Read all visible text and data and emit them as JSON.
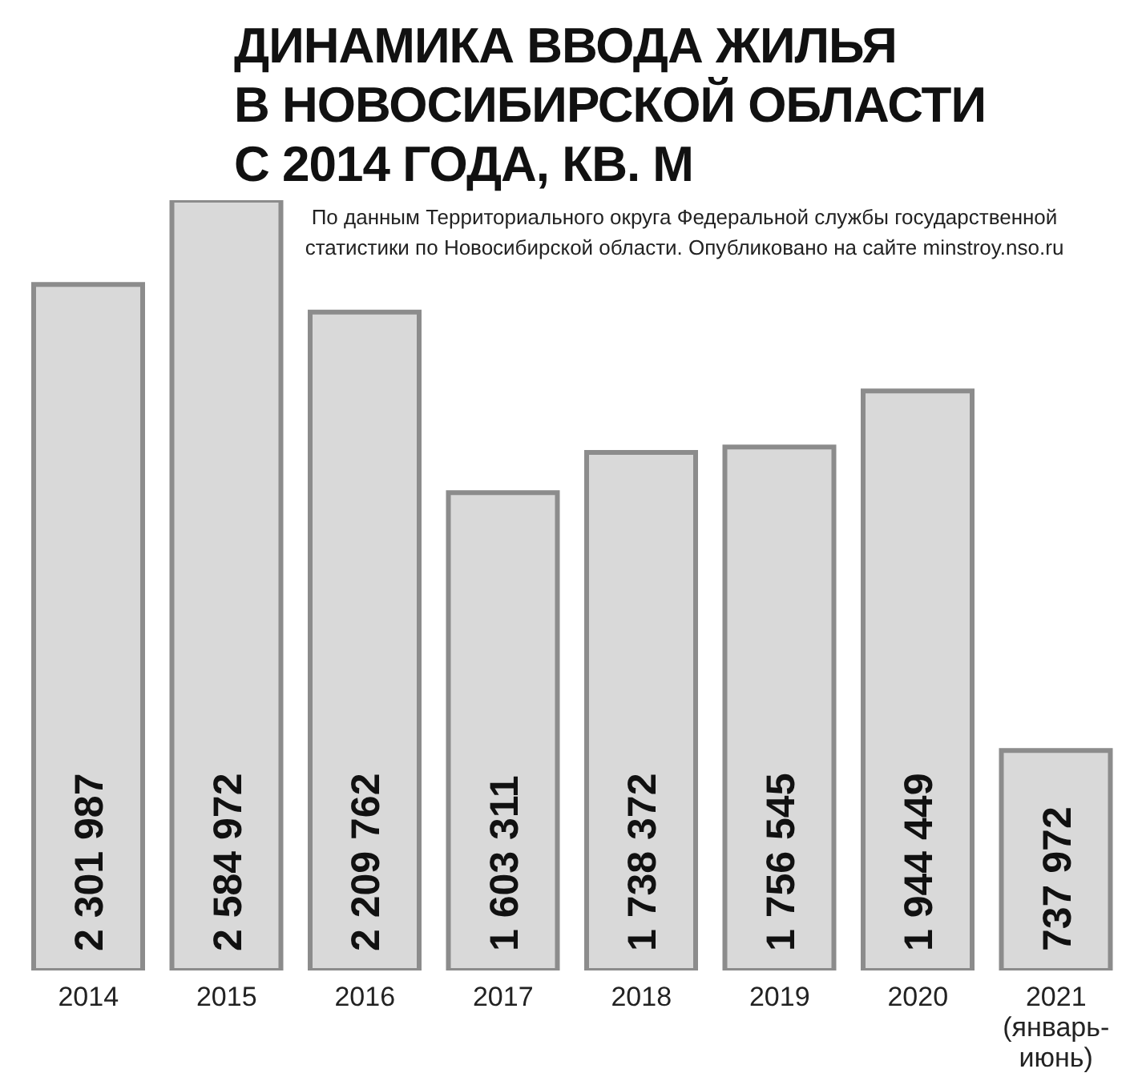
{
  "chart_data": {
    "type": "bar",
    "title": "ДИНАМИКА ВВОДА ЖИЛЬЯ В НОВОСИБИРСКОЙ ОБЛАСТИ С 2014 ГОДА, КВ. М",
    "subtitle": "По данным Территориального округа Федеральной службы государственной статистики по Новосибирской области. Опубликовано на сайте minstroy.nso.ru",
    "categories": [
      "2014",
      "2015",
      "2016",
      "2017",
      "2018",
      "2019",
      "2020",
      "2021 (январь-июнь)"
    ],
    "values": [
      2301987,
      2584972,
      2209762,
      1603311,
      1738372,
      1756545,
      1944449,
      737972
    ],
    "value_labels": [
      "2 301 987",
      "2 584 972",
      "2 209 762",
      "1 603 311",
      "1 738 372",
      "1 756 545",
      "1 944 449",
      "737 972"
    ],
    "color": "#d9d9d9",
    "grid": false,
    "legend": false
  }
}
